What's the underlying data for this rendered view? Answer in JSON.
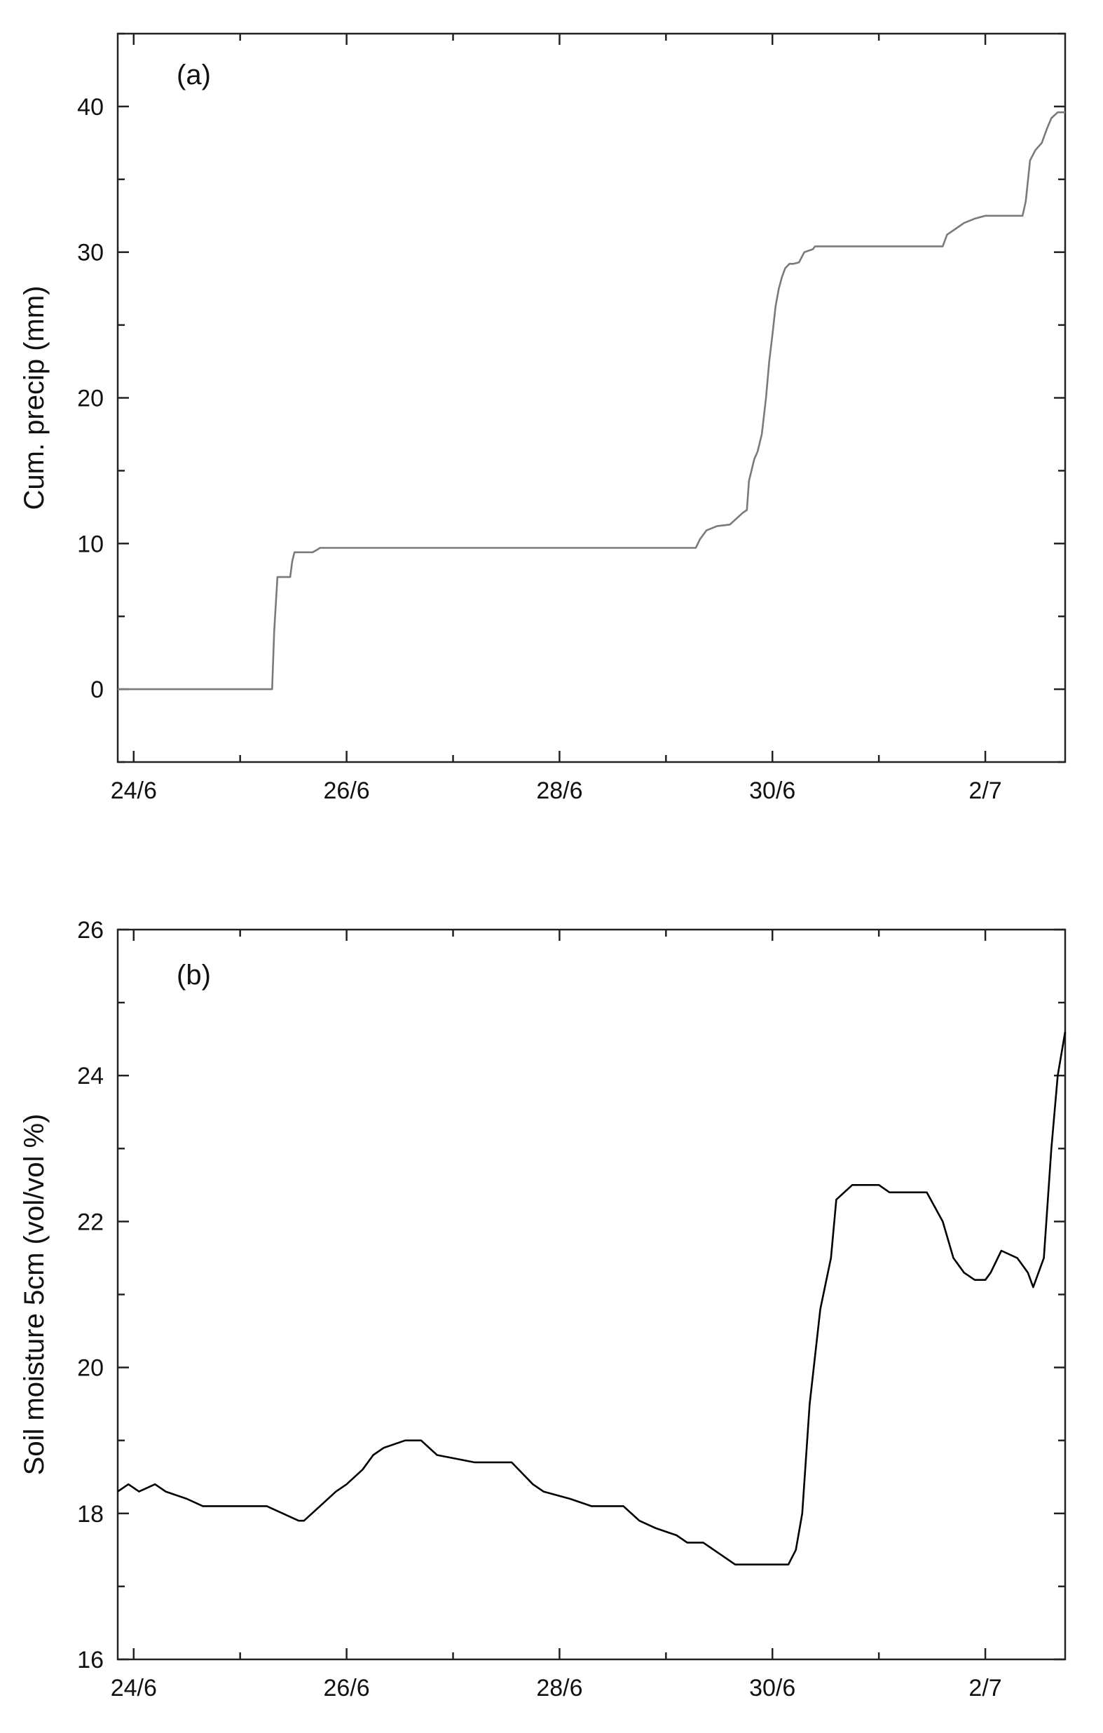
{
  "chart_data": [
    {
      "type": "line",
      "panel_label": "(a)",
      "title": "",
      "xlabel": "",
      "ylabel": "Cum. precip (mm)",
      "x_unit": "days after 24/6",
      "xlim": [
        -0.15,
        8.75
      ],
      "ylim": [
        -5,
        45
      ],
      "x_ticks": [
        0,
        2,
        4,
        6,
        8
      ],
      "x_tick_labels": [
        "24/6",
        "26/6",
        "28/6",
        "30/6",
        "2/7"
      ],
      "y_ticks": [
        0,
        10,
        20,
        30,
        40
      ],
      "y_tick_labels": [
        "0",
        "10",
        "20",
        "30",
        "40"
      ],
      "grid": false,
      "line_color": "#7a7a7a",
      "series": [
        {
          "x": [
            -0.15,
            1.3,
            1.32,
            1.35,
            1.47,
            1.49,
            1.51,
            1.68,
            1.73,
            1.75,
            5.28,
            5.32,
            5.38,
            5.48,
            5.6,
            5.72,
            5.76,
            5.78,
            5.83,
            5.86,
            5.9,
            5.94,
            5.97,
            6.0,
            6.03,
            6.06,
            6.09,
            6.12,
            6.16,
            6.2,
            6.25,
            6.3,
            6.38,
            6.4,
            6.43,
            6.47,
            7.6,
            7.64,
            7.72,
            7.8,
            7.9,
            8.0,
            8.1,
            8.15,
            8.35,
            8.38,
            8.42,
            8.47,
            8.53,
            8.58,
            8.62,
            8.68,
            8.75
          ],
          "y": [
            0,
            0,
            4,
            7.7,
            7.7,
            8.8,
            9.4,
            9.4,
            9.6,
            9.7,
            9.7,
            10.3,
            10.9,
            11.2,
            11.3,
            12.1,
            12.3,
            14.3,
            15.8,
            16.3,
            17.5,
            20,
            22.5,
            24.3,
            26.3,
            27.5,
            28.3,
            28.9,
            29.2,
            29.2,
            29.3,
            30,
            30.2,
            30.4,
            30.4,
            30.4,
            30.4,
            31.2,
            31.6,
            32.0,
            32.3,
            32.5,
            32.5,
            32.5,
            32.5,
            33.5,
            36.3,
            37.0,
            37.5,
            38.5,
            39.2,
            39.6,
            39.6
          ]
        }
      ]
    },
    {
      "type": "line",
      "panel_label": "(b)",
      "title": "",
      "xlabel": "",
      "ylabel": "Soil moisture 5cm (vol/vol %)",
      "x_unit": "days after 24/6",
      "xlim": [
        -0.15,
        8.75
      ],
      "ylim": [
        16,
        26
      ],
      "x_ticks": [
        0,
        2,
        4,
        6,
        8
      ],
      "x_tick_labels": [
        "24/6",
        "26/6",
        "28/6",
        "30/6",
        "2/7"
      ],
      "y_ticks": [
        16,
        18,
        20,
        22,
        24,
        26
      ],
      "y_tick_labels": [
        "16",
        "18",
        "20",
        "22",
        "24",
        "26"
      ],
      "grid": false,
      "line_color": "#000000",
      "series": [
        {
          "x": [
            -0.15,
            -0.05,
            0.05,
            0.2,
            0.3,
            0.5,
            0.65,
            0.75,
            0.9,
            1.05,
            1.25,
            1.55,
            1.6,
            1.75,
            1.9,
            2.0,
            2.15,
            2.25,
            2.35,
            2.55,
            2.6,
            2.7,
            2.85,
            3.2,
            3.25,
            3.4,
            3.55,
            3.75,
            3.85,
            4.1,
            4.3,
            4.45,
            4.6,
            4.75,
            4.9,
            5.1,
            5.2,
            5.35,
            5.45,
            5.65,
            5.85,
            6.15,
            6.22,
            6.28,
            6.35,
            6.45,
            6.55,
            6.6,
            6.75,
            7.0,
            7.1,
            7.35,
            7.45,
            7.6,
            7.7,
            7.8,
            7.9,
            8.0,
            8.05,
            8.15,
            8.3,
            8.4,
            8.45,
            8.55,
            8.62,
            8.68,
            8.75
          ],
          "y": [
            18.3,
            18.4,
            18.3,
            18.4,
            18.3,
            18.2,
            18.1,
            18.1,
            18.1,
            18.1,
            18.1,
            17.9,
            17.9,
            18.1,
            18.3,
            18.4,
            18.6,
            18.8,
            18.9,
            19.0,
            19.0,
            19.0,
            18.8,
            18.7,
            18.7,
            18.7,
            18.7,
            18.4,
            18.3,
            18.2,
            18.1,
            18.1,
            18.1,
            17.9,
            17.8,
            17.7,
            17.6,
            17.6,
            17.5,
            17.3,
            17.3,
            17.3,
            17.5,
            18.0,
            19.5,
            20.8,
            21.5,
            22.3,
            22.5,
            22.5,
            22.4,
            22.4,
            22.4,
            22.0,
            21.5,
            21.3,
            21.2,
            21.2,
            21.3,
            21.6,
            21.5,
            21.3,
            21.1,
            21.5,
            23.0,
            24.0,
            24.6
          ]
        }
      ]
    }
  ]
}
